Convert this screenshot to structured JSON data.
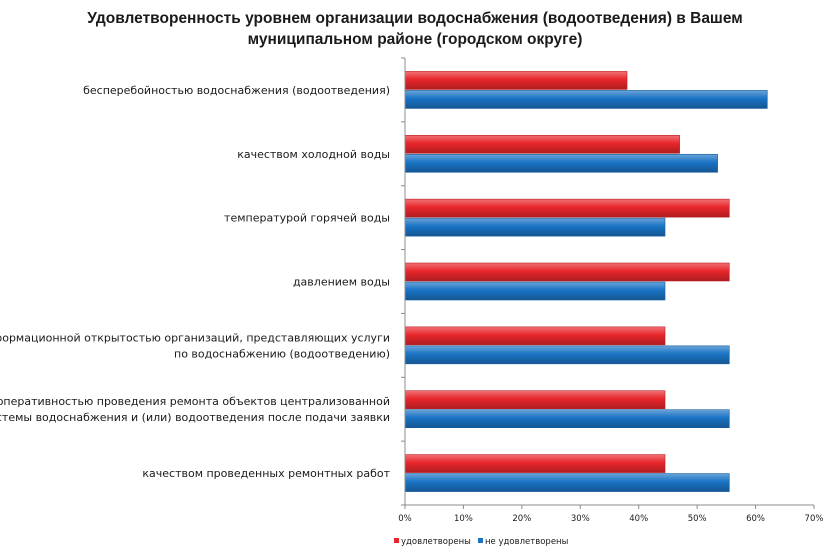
{
  "chart_data": {
    "type": "bar",
    "orientation": "horizontal",
    "title_lines": [
      "Удовлетворенность уровнем организации водоснабжения (водоотведения) в Вашем",
      "муниципальном районе (городском округе)"
    ],
    "categories": [
      [
        "бесперебойностью водоснабжения (водоотведения)"
      ],
      [
        "качеством холодной воды"
      ],
      [
        "температурой горячей воды"
      ],
      [
        "давлением воды"
      ],
      [
        "информационной открытостью организаций, представляющих услуги",
        "по водоснабжению (водоотведению)"
      ],
      [
        "оперативностью проведения  ремонта объектов централизованной",
        "системы водоснабжения и (или) водоотведения  после подачи заявки"
      ],
      [
        "качеством проведенных ремонтных работ"
      ]
    ],
    "series": [
      {
        "name": "удовлетворены",
        "color": "#e8262b",
        "values": [
          38,
          47,
          55.5,
          55.5,
          44.5,
          44.5,
          44.5
        ]
      },
      {
        "name": "не удовлетворены",
        "color": "#1a73c4",
        "values": [
          62,
          53.5,
          44.5,
          44.5,
          55.5,
          55.5,
          55.5
        ]
      }
    ],
    "xlim": [
      0,
      70
    ],
    "xticks": [
      "0%",
      "10%",
      "20%",
      "30%",
      "40%",
      "50%",
      "60%",
      "70%"
    ],
    "legend_position": "bottom",
    "grid": false
  }
}
